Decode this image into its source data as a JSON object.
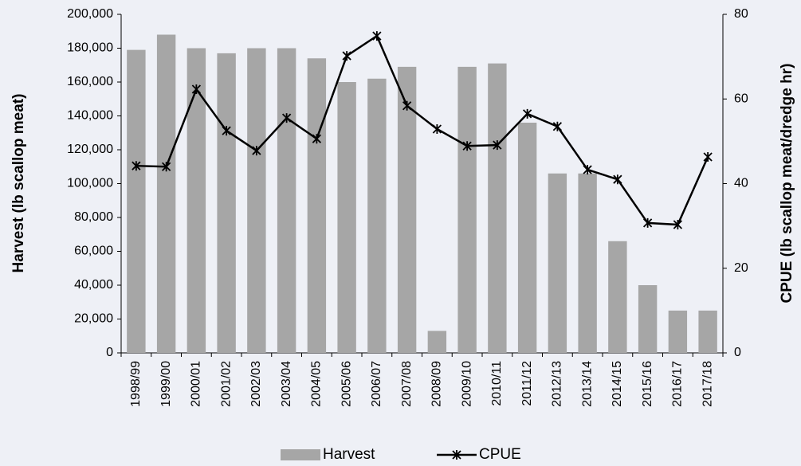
{
  "chart_data": {
    "type": "bar-line",
    "categories": [
      "1998/99",
      "1999/00",
      "2000/01",
      "2001/02",
      "2002/03",
      "2003/04",
      "2004/05",
      "2005/06",
      "2006/07",
      "2007/08",
      "2008/09",
      "2009/10",
      "2010/11",
      "2011/12",
      "2012/13",
      "2013/14",
      "2014/15",
      "2015/16",
      "2016/17",
      "2017/18"
    ],
    "y_label": "Harvest (lb scallop meat)",
    "y2_label": "CPUE (lb scallop meat/dredge hr)",
    "series": [
      {
        "name": "Harvest",
        "type": "bar",
        "color": "#a6a6a6",
        "values": [
          179000,
          188000,
          180000,
          177000,
          180000,
          180000,
          174000,
          160000,
          162000,
          169000,
          13000,
          169000,
          171000,
          136000,
          106000,
          106000,
          66000,
          40000,
          25000,
          25000
        ]
      },
      {
        "name": "CPUE",
        "type": "line",
        "axis": "y2",
        "color": "#000000",
        "values": [
          44.2,
          44,
          62.3,
          52.5,
          47.8,
          55.5,
          50.6,
          70.2,
          74.9,
          58.4,
          52.9,
          48.9,
          49.1,
          56.5,
          53.5,
          43.3,
          41,
          30.7,
          30.3,
          46.3
        ]
      }
    ],
    "ylim": [
      0,
      200000
    ],
    "yticks": [
      0,
      {
        "value": 20000,
        "label": "20,000"
      },
      {
        "value": 40000,
        "label": "40,000"
      },
      {
        "value": 60000,
        "label": "60,000"
      },
      {
        "value": 80000,
        "label": "80,000"
      },
      {
        "value": 100000,
        "label": "100,000"
      },
      {
        "value": 120000,
        "label": "120,000"
      },
      {
        "value": 140000,
        "label": "140,000"
      },
      {
        "value": 160000,
        "label": "160,000"
      },
      {
        "value": 180000,
        "label": "180,000"
      },
      {
        "value": 200000,
        "label": "200,000"
      }
    ],
    "y2lim": [
      0,
      80
    ],
    "y2ticks": [
      0,
      20,
      40,
      60,
      80
    ],
    "legend": "bottom"
  }
}
